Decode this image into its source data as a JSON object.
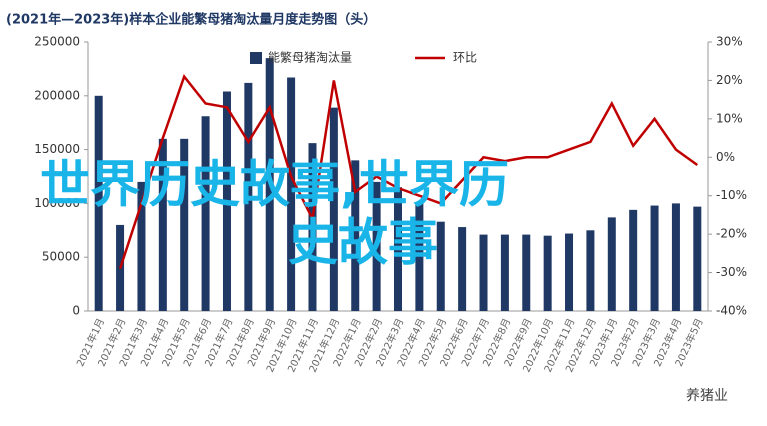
{
  "chart_data": {
    "type": "bar_line",
    "title": "(2021年—2023年)样本企业能繁母猪淘汰量月度走势图（头）",
    "categories": [
      "2021年1月",
      "2021年2月",
      "2021年3月",
      "2021年4月",
      "2021年5月",
      "2021年6月",
      "2021年7月",
      "2021年8月",
      "2021年9月",
      "2021年10月",
      "2021年11月",
      "2021年12月",
      "2022年1月",
      "2022年2月",
      "2022年3月",
      "2022年4月",
      "2022年5月",
      "2022年6月",
      "2022年7月",
      "2022年8月",
      "2022年9月",
      "2022年10月",
      "2022年11月",
      "2022年12月",
      "2023年1月",
      "2023年2月",
      "2023年3月",
      "2023年4月",
      "2023年5月"
    ],
    "series": [
      {
        "name": "能繁母猪淘汰量",
        "color": "#1f3864",
        "type": "bar",
        "values": [
          200000,
          80000,
          120000,
          160000,
          160000,
          181000,
          204000,
          212000,
          235000,
          217000,
          156000,
          189000,
          140000,
          120000,
          115000,
          100000,
          83000,
          78000,
          71000,
          71000,
          71000,
          70000,
          72000,
          75000,
          87000,
          94000,
          98000,
          100000,
          97000
        ]
      },
      {
        "name": "环比",
        "color": "#c00000",
        "type": "line",
        "axis": "y2",
        "values": [
          null,
          -29,
          -12,
          5,
          21,
          14,
          13,
          4,
          13,
          -5,
          -16,
          20,
          -9,
          -5,
          -8,
          -10,
          -12,
          -6,
          0,
          -1,
          0,
          0,
          2,
          4,
          14,
          3,
          10,
          2,
          -2
        ]
      }
    ],
    "ylim": [
      0,
      250000
    ],
    "yticks": [
      0,
      50000,
      100000,
      150000,
      200000,
      250000
    ],
    "y2lim": [
      -40,
      30
    ],
    "y2ticks": [
      {
        "value": -40,
        "label": "-40%"
      },
      {
        "value": -30,
        "label": "-30%"
      },
      {
        "value": -20,
        "label": "-20%"
      },
      {
        "value": -10,
        "label": "-10%"
      },
      {
        "value": 0,
        "label": "0%"
      },
      {
        "value": 10,
        "label": "10%"
      },
      {
        "value": 20,
        "label": "20%"
      },
      {
        "value": 30,
        "label": "30%"
      }
    ],
    "overlay_text": [
      "世界历史故事,世界历",
      "史故事"
    ],
    "watermark": "养猪业"
  }
}
